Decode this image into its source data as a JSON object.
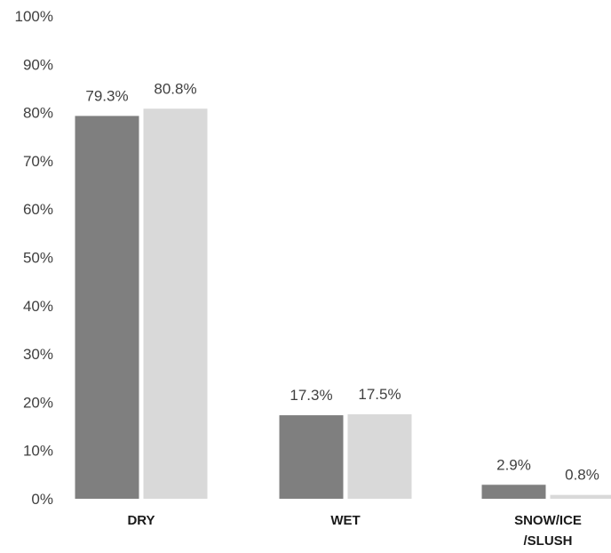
{
  "chart_data": {
    "type": "bar",
    "categories": [
      [
        "DRY"
      ],
      [
        "WET"
      ],
      [
        "SNOW/ICE",
        "/SLUSH"
      ]
    ],
    "series": [
      {
        "values": [
          79.3,
          17.3,
          2.9
        ],
        "color": "#7f7f7f"
      },
      {
        "values": [
          80.8,
          17.5,
          0.8
        ],
        "color": "#d9d9d9"
      }
    ],
    "data_labels": [
      [
        "79.3%",
        "17.3%",
        "2.9%"
      ],
      [
        "80.8%",
        "17.5%",
        "0.8%"
      ]
    ],
    "y_ticks": [
      "0%",
      "10%",
      "20%",
      "30%",
      "40%",
      "50%",
      "60%",
      "70%",
      "80%",
      "90%",
      "100%"
    ],
    "ylim": [
      0,
      100
    ],
    "grid": false,
    "legend": "none"
  }
}
